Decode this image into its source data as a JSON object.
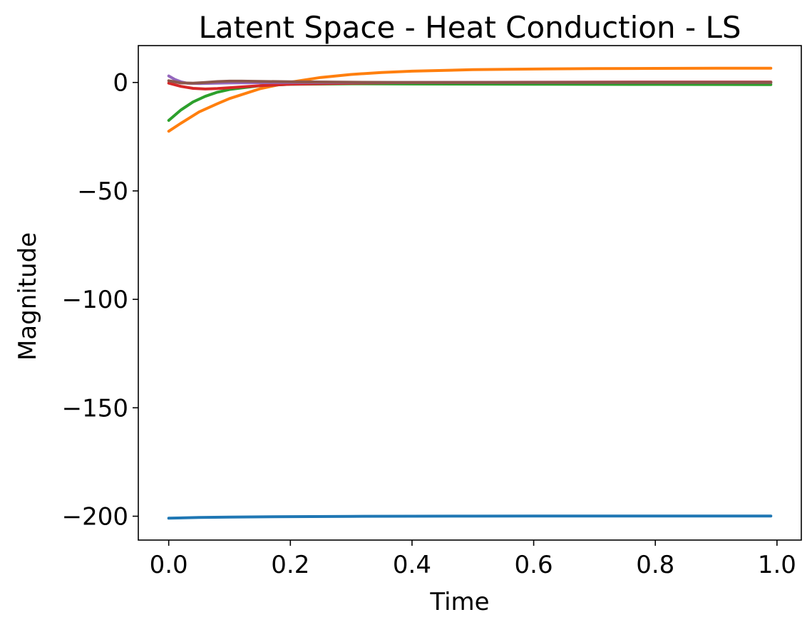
{
  "chart_data": {
    "type": "line",
    "title": "Latent Space - Heat Conduction - LS",
    "xlabel": "Time",
    "ylabel": "Magnitude",
    "xlim": [
      -0.05,
      1.04
    ],
    "ylim": [
      -211,
      17
    ],
    "x_ticks": [
      0.0,
      0.2,
      0.4,
      0.6,
      0.8,
      1.0
    ],
    "x_tick_labels": [
      "0.0",
      "0.2",
      "0.4",
      "0.6",
      "0.8",
      "1.0"
    ],
    "y_ticks": [
      0,
      -50,
      -100,
      -150,
      -200
    ],
    "y_tick_labels": [
      "0",
      "−50",
      "−100",
      "−150",
      "−200"
    ],
    "grid": false,
    "legend": "none",
    "series": [
      {
        "color": "#1f77b4",
        "x": [
          0.0,
          0.05,
          0.1,
          0.2,
          0.3,
          0.4,
          0.5,
          0.6,
          0.7,
          0.8,
          0.9,
          0.99
        ],
        "y": [
          -200.9,
          -200.6,
          -200.4,
          -200.2,
          -200.05,
          -200.0,
          -199.95,
          -199.9,
          -199.9,
          -199.9,
          -199.9,
          -199.9
        ]
      },
      {
        "color": "#ff7f0e",
        "x": [
          0.0,
          0.02,
          0.05,
          0.08,
          0.1,
          0.15,
          0.2,
          0.25,
          0.3,
          0.35,
          0.4,
          0.5,
          0.6,
          0.7,
          0.8,
          0.9,
          0.99
        ],
        "y": [
          -22.5,
          -18.8,
          -13.6,
          -9.8,
          -7.4,
          -2.9,
          0.1,
          2.3,
          3.7,
          4.6,
          5.2,
          5.9,
          6.2,
          6.4,
          6.5,
          6.55,
          6.6
        ]
      },
      {
        "color": "#2ca02c",
        "x": [
          0.0,
          0.02,
          0.04,
          0.06,
          0.08,
          0.1,
          0.15,
          0.2,
          0.3,
          0.4,
          0.6,
          0.8,
          0.99
        ],
        "y": [
          -17.5,
          -12.7,
          -9.0,
          -6.4,
          -4.5,
          -3.2,
          -1.5,
          -0.8,
          -0.6,
          -0.7,
          -0.8,
          -0.9,
          -1.0
        ]
      },
      {
        "color": "#d62728",
        "x": [
          0.0,
          0.02,
          0.04,
          0.06,
          0.08,
          0.1,
          0.15,
          0.2,
          0.3,
          0.4,
          0.6,
          0.8,
          0.99
        ],
        "y": [
          -0.3,
          -1.8,
          -2.7,
          -3.0,
          -2.8,
          -2.4,
          -1.5,
          -0.8,
          -0.3,
          0.0,
          0.1,
          0.2,
          0.2
        ]
      },
      {
        "color": "#9467bd",
        "x": [
          0.0,
          0.01,
          0.02,
          0.03,
          0.05,
          0.1,
          0.2,
          0.4,
          0.6,
          0.8,
          0.99
        ],
        "y": [
          3.0,
          1.4,
          0.3,
          -0.3,
          -0.5,
          -0.2,
          0.0,
          0.0,
          0.0,
          0.0,
          0.0
        ]
      },
      {
        "color": "#8c564b",
        "x": [
          0.0,
          0.02,
          0.04,
          0.06,
          0.08,
          0.1,
          0.12,
          0.15,
          0.2,
          0.3,
          0.4,
          0.6,
          0.8,
          0.99
        ],
        "y": [
          0.8,
          -0.2,
          -0.3,
          0.0,
          0.4,
          0.6,
          0.6,
          0.5,
          0.3,
          0.1,
          0.0,
          0.0,
          0.0,
          0.0
        ]
      }
    ]
  }
}
